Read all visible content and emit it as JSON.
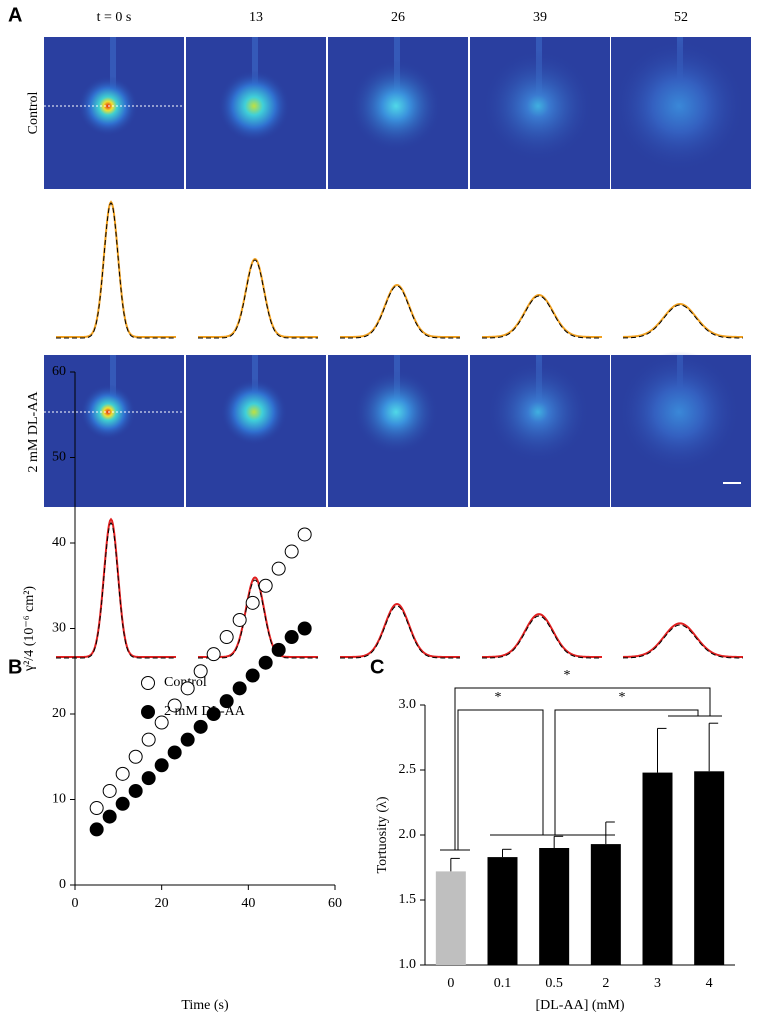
{
  "panel_a": {
    "label": "A",
    "times": [
      "t = 0 s",
      "13",
      "26",
      "39",
      "52"
    ],
    "rows": [
      "Control",
      "2 mM DL-AA"
    ]
  },
  "chart_data": [
    {
      "type": "scatter",
      "label": "B",
      "xlabel": "Time (s)",
      "ylabel": "γ²/4 (10⁻⁶ cm²)",
      "xlim": [
        0,
        60
      ],
      "ylim": [
        0,
        60
      ],
      "xticks": [
        0,
        20,
        40,
        60
      ],
      "yticks": [
        0,
        10,
        20,
        30,
        40,
        50,
        60
      ],
      "x": [
        5,
        8,
        11,
        14,
        17,
        20,
        23,
        26,
        29,
        32,
        35,
        38,
        41,
        44,
        47,
        50,
        53
      ],
      "series": [
        {
          "name": "Control",
          "color": "#000000",
          "filled": false,
          "values": [
            9,
            11,
            13,
            15,
            17,
            19,
            21,
            23,
            25,
            27,
            29,
            31,
            33,
            35,
            37,
            39,
            41
          ]
        },
        {
          "name": "2 mM DL-AA",
          "color": "#000000",
          "filled": true,
          "values": [
            6.5,
            8,
            9.5,
            11,
            12.5,
            14,
            15.5,
            17,
            18.5,
            20,
            21.5,
            23,
            24.5,
            26,
            27.5,
            29,
            30
          ]
        }
      ]
    },
    {
      "type": "bar",
      "label": "C",
      "xlabel": "[DL-AA] (mM)",
      "ylabel": "Tortuosity (λ)",
      "categories": [
        "0",
        "0.1",
        "0.5",
        "2",
        "3",
        "4"
      ],
      "values": [
        1.72,
        1.83,
        1.9,
        1.93,
        2.48,
        2.49
      ],
      "errors": [
        0.1,
        0.06,
        0.09,
        0.17,
        0.34,
        0.37
      ],
      "colors": [
        "#bfbfbf",
        "#000000",
        "#000000",
        "#000000",
        "#000000",
        "#000000"
      ],
      "ylim": [
        1,
        3
      ],
      "yticks": [
        {
          "value": 1,
          "label": "1.0"
        },
        {
          "value": 1.5,
          "label": "1.5"
        },
        {
          "value": 2,
          "label": "2.0"
        },
        {
          "value": 2.5,
          "label": "2.5"
        },
        {
          "value": 3,
          "label": "3.0"
        }
      ],
      "annotations": [
        "*",
        "*",
        "*"
      ]
    }
  ]
}
